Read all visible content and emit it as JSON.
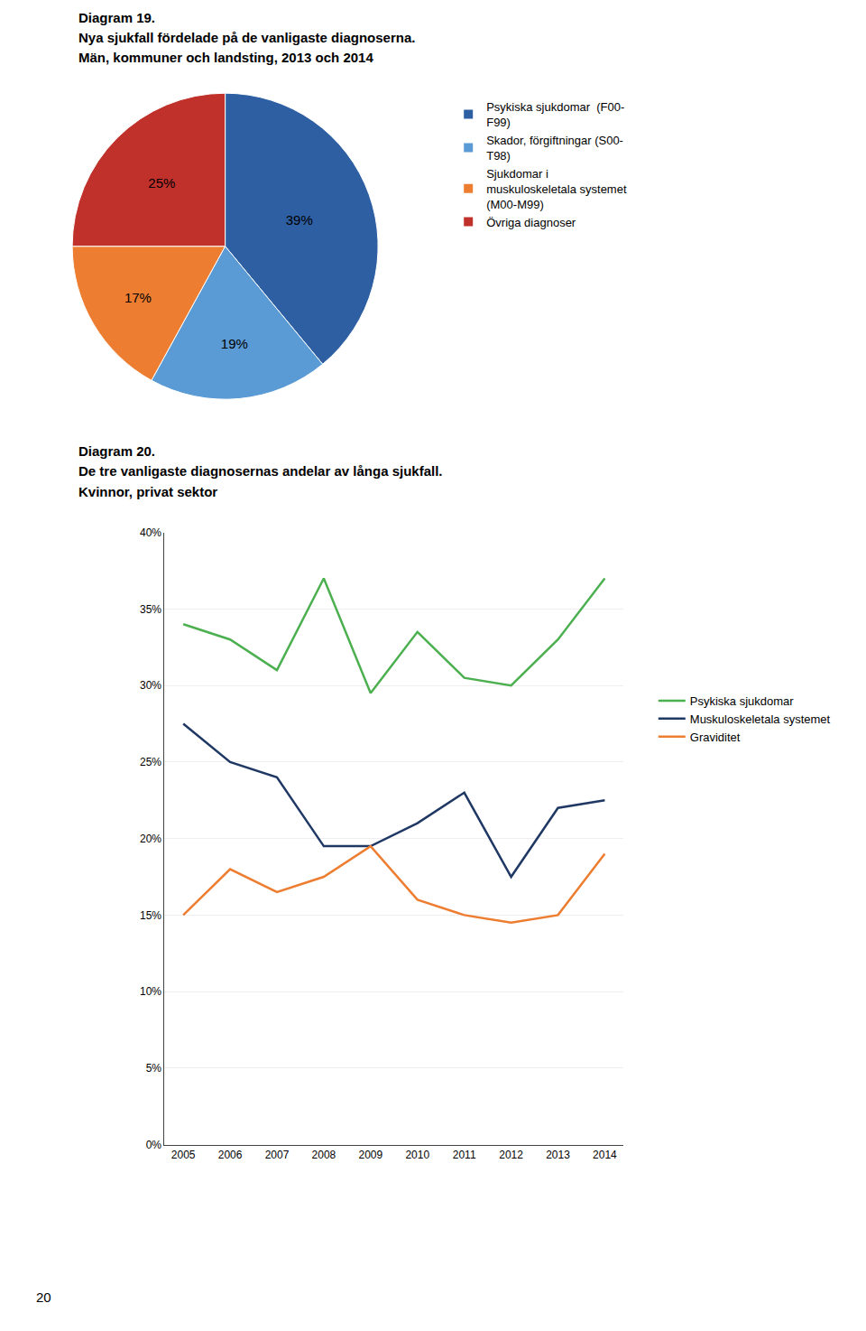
{
  "chart_data": [
    {
      "type": "pie",
      "title": "Diagram 19.",
      "subtitle": "Nya sjukfall fördelade på de vanligaste diagnoserna.\nMän, kommuner och landsting, 2013 och 2014",
      "categories": [
        "Psykiska sjukdomar  (F00-\nF99)",
        "Skador, förgiftningar (S00-\nT98)",
        "Sjukdomar i\nmuskuloskeletala systemet\n(M00-M99)",
        "Övriga diagnoser"
      ],
      "values": [
        39,
        19,
        17,
        25
      ],
      "value_labels": [
        "39%",
        "19%",
        "17%",
        "25%"
      ],
      "data_labels": true,
      "colors": [
        "#2E5FA3",
        "#5B9BD5",
        "#ED7D31",
        "#C0312B"
      ],
      "legend": "right"
    },
    {
      "type": "line",
      "title": "Diagram 20.",
      "subtitle": "De tre vanligaste diagnosernas andelar av långa sjukfall.\nKvinnor, privat sektor",
      "x": [
        2005,
        2006,
        2007,
        2008,
        2009,
        2010,
        2011,
        2012,
        2013,
        2014
      ],
      "series": [
        {
          "name": "Psykiska sjukdomar",
          "color": "#4CAF50",
          "values": [
            34,
            33,
            31,
            37,
            29.5,
            33.5,
            30.5,
            30,
            33,
            37
          ]
        },
        {
          "name": "Muskuloskeletala systemet",
          "color": "#1F3864",
          "values": [
            27.5,
            25,
            24,
            19.5,
            19.5,
            21,
            23,
            17.5,
            22,
            22.5
          ]
        },
        {
          "name": "Graviditet",
          "color": "#ED7D31",
          "values": [
            15,
            18,
            16.5,
            17.5,
            19.5,
            16,
            15,
            14.5,
            15,
            19
          ]
        }
      ],
      "xlim": [
        2004.6,
        2014.4
      ],
      "xticks": [
        2005,
        2006,
        2007,
        2008,
        2009,
        2010,
        2011,
        2012,
        2013,
        2014
      ],
      "ylim": [
        0,
        40
      ],
      "yticks": [
        {
          "value": 0,
          "label": "0%"
        },
        {
          "value": 5,
          "label": "5%"
        },
        {
          "value": 10,
          "label": "10%"
        },
        {
          "value": 15,
          "label": "15%"
        },
        {
          "value": 20,
          "label": "20%"
        },
        {
          "value": 25,
          "label": "25%"
        },
        {
          "value": 30,
          "label": "30%"
        },
        {
          "value": 35,
          "label": "35%"
        },
        {
          "value": 40,
          "label": "40%"
        }
      ],
      "grid": true,
      "legend": "right",
      "annotations": [
        "20"
      ]
    }
  ]
}
